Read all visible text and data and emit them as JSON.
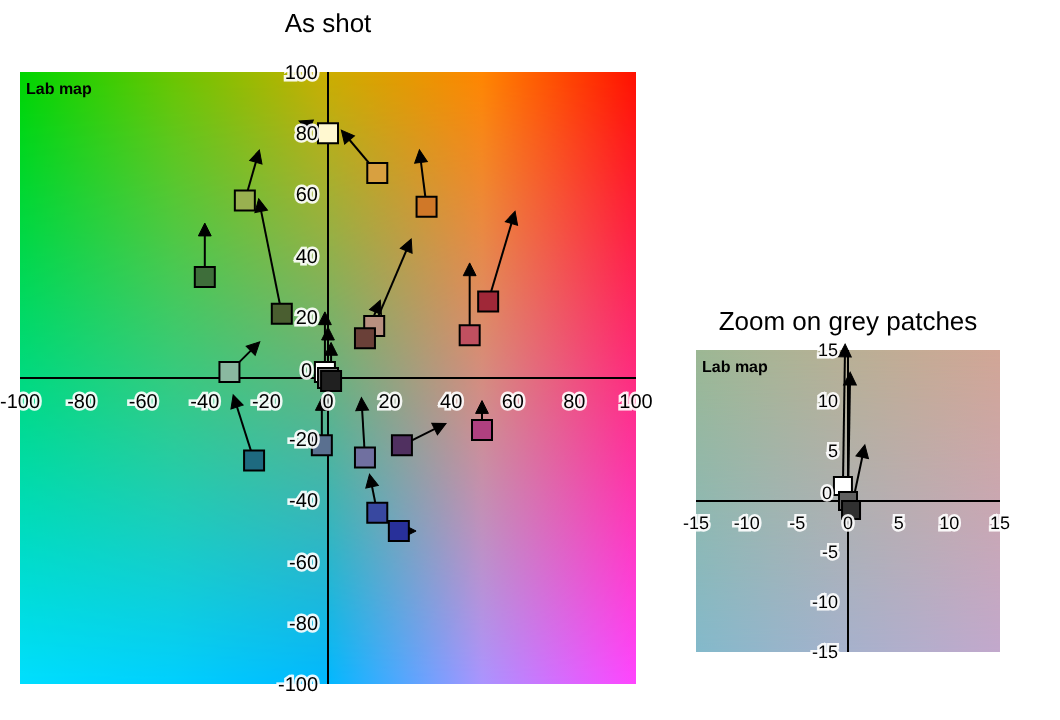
{
  "chart_data": [
    {
      "type": "scatter",
      "title": "As shot",
      "annotations": [
        "Lab map"
      ],
      "xlim": [
        -100,
        100
      ],
      "ylim": [
        -100,
        100
      ],
      "xticks": [
        -100,
        -80,
        -60,
        -40,
        -20,
        0,
        20,
        40,
        60,
        80,
        100
      ],
      "yticks": [
        -100,
        -80,
        -60,
        -40,
        -20,
        0,
        20,
        40,
        60,
        80,
        100
      ],
      "series": [
        {
          "type": "scatter",
          "marker": "square",
          "x": [
            -40,
            -27,
            -15,
            0,
            -32,
            16,
            32,
            15,
            12,
            46,
            52,
            -24,
            -2,
            12,
            24,
            50,
            16,
            23,
            -1,
            0,
            1
          ],
          "values": [
            33,
            58,
            21,
            80,
            2,
            67,
            56,
            17,
            13,
            14,
            25,
            -27,
            -22,
            -26,
            -22,
            -17,
            -44,
            -50,
            2,
            0,
            -1
          ],
          "colors": [
            "#3e6e3a",
            "#99b050",
            "#4a5e30",
            "#fff8d0",
            "#8ab8a0",
            "#d8a040",
            "#d07828",
            "#b89080",
            "#6a4038",
            "#c05060",
            "#a02838",
            "#1e6a80",
            "#5a7090",
            "#7070a0",
            "#503060",
            "#b04080",
            "#3848a0",
            "#28309a",
            "#ffffff",
            "#808080",
            "#202020"
          ]
        },
        {
          "type": "scatter",
          "marker": "triangle",
          "color": "#000000",
          "x": [
            -40,
            -23,
            -22,
            -7,
            -24,
            6,
            30,
            26,
            16,
            46,
            60,
            -30,
            -2,
            11,
            36,
            50,
            14,
            26,
            -1,
            0,
            1
          ],
          "values": [
            48,
            72,
            56,
            83,
            10,
            79,
            72,
            43,
            23,
            35,
            52,
            -8,
            -9,
            -9,
            -16,
            -10,
            -34,
            -50,
            19,
            14,
            9
          ]
        }
      ]
    },
    {
      "type": "scatter",
      "title": "Zoom on grey patches",
      "annotations": [
        "Lab map"
      ],
      "xlim": [
        -15,
        15
      ],
      "ylim": [
        -15,
        15
      ],
      "xticks": [
        -15,
        -10,
        -5,
        0,
        5,
        10,
        15
      ],
      "yticks": [
        -15,
        -10,
        -5,
        0,
        5,
        10,
        15
      ],
      "series": [
        {
          "type": "scatter",
          "marker": "square",
          "x": [
            -0.5,
            0,
            0.3
          ],
          "values": [
            1.5,
            0,
            -0.9
          ],
          "colors": [
            "#ffffff",
            "#606060",
            "#303030"
          ]
        },
        {
          "type": "scatter",
          "marker": "triangle",
          "color": "#000000",
          "x": [
            -0.3,
            0.2,
            1.5
          ],
          "values": [
            14.8,
            12,
            4.8
          ]
        }
      ]
    }
  ]
}
